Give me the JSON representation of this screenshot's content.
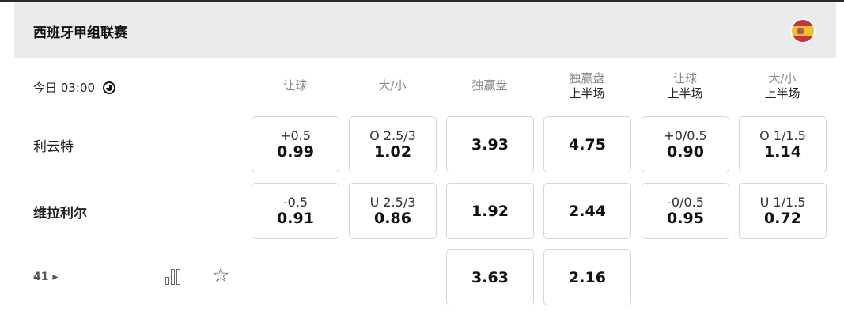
{
  "league": {
    "title": "西班牙甲组联赛",
    "flag": "spain-flag-icon"
  },
  "match": {
    "time": "今日 03:00",
    "more_count": "41 ▸"
  },
  "columns": [
    {
      "label": "让球",
      "sub": ""
    },
    {
      "label": "大/小",
      "sub": ""
    },
    {
      "label": "独赢盘",
      "sub": ""
    },
    {
      "label": "独赢盘",
      "sub": "上半场"
    },
    {
      "label": "让球",
      "sub": "上半场"
    },
    {
      "label": "大/小",
      "sub": "上半场"
    }
  ],
  "teams": [
    "利云特",
    "维拉利尔"
  ],
  "odds": [
    [
      {
        "line": "+0.5",
        "odd": "0.99"
      },
      {
        "line": "O 2.5/3",
        "odd": "1.02"
      },
      {
        "line": "",
        "odd": "3.93"
      },
      {
        "line": "",
        "odd": "4.75"
      },
      {
        "line": "+0/0.5",
        "odd": "0.90"
      },
      {
        "line": "O 1/1.5",
        "odd": "1.14"
      }
    ],
    [
      {
        "line": "-0.5",
        "odd": "0.91"
      },
      {
        "line": "U 2.5/3",
        "odd": "0.86"
      },
      {
        "line": "",
        "odd": "1.92"
      },
      {
        "line": "",
        "odd": "2.44"
      },
      {
        "line": "-0/0.5",
        "odd": "0.95"
      },
      {
        "line": "U 1/1.5",
        "odd": "0.72"
      }
    ],
    [
      null,
      null,
      {
        "line": "",
        "odd": "3.63"
      },
      {
        "line": "",
        "odd": "2.16"
      },
      null,
      null
    ]
  ]
}
